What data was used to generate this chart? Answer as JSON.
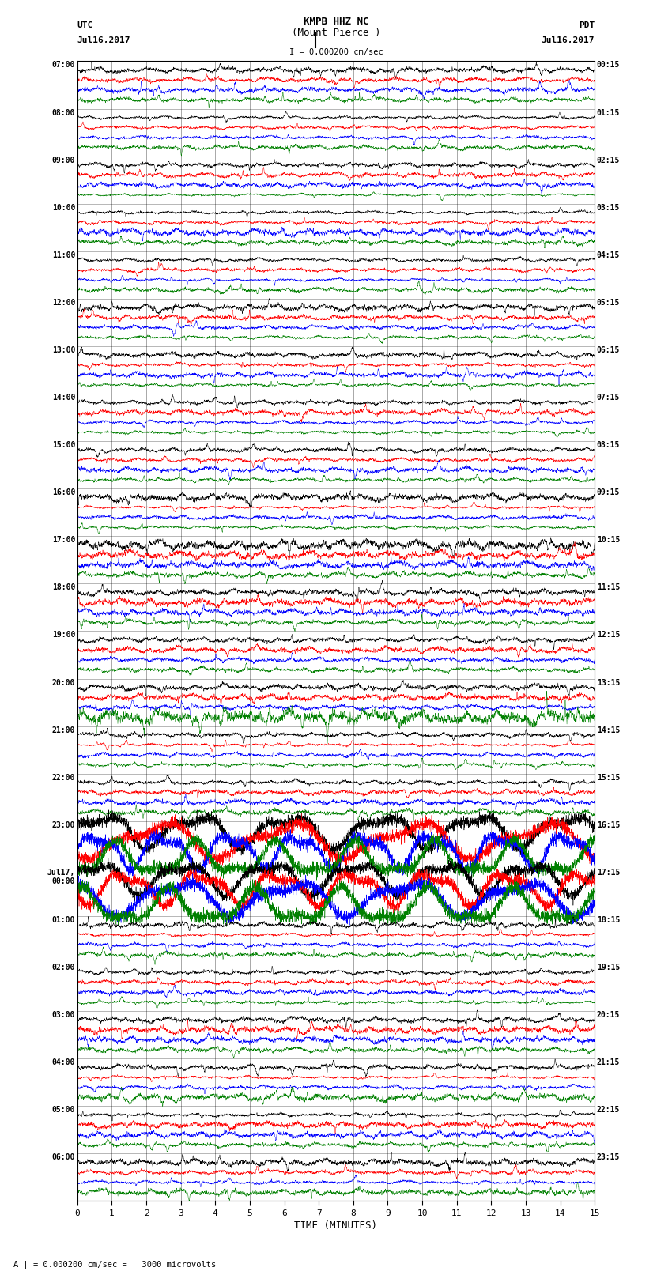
{
  "title_line1": "KMPB HHZ NC",
  "title_line2": "(Mount Pierce )",
  "scale_label": "I = 0.000200 cm/sec",
  "left_date": "Jul16,2017",
  "right_date": "Jul16,2017",
  "left_tz": "UTC",
  "right_tz": "PDT",
  "left_times": [
    "07:00",
    "08:00",
    "09:00",
    "10:00",
    "11:00",
    "12:00",
    "13:00",
    "14:00",
    "15:00",
    "16:00",
    "17:00",
    "18:00",
    "19:00",
    "20:00",
    "21:00",
    "22:00",
    "23:00",
    "Jul17,\n00:00",
    "01:00",
    "02:00",
    "03:00",
    "04:00",
    "05:00",
    "06:00"
  ],
  "right_times": [
    "00:15",
    "01:15",
    "02:15",
    "03:15",
    "04:15",
    "05:15",
    "06:15",
    "07:15",
    "08:15",
    "09:15",
    "10:15",
    "11:15",
    "12:15",
    "13:15",
    "14:15",
    "15:15",
    "16:15",
    "17:15",
    "18:15",
    "19:15",
    "20:15",
    "21:15",
    "22:15",
    "23:15"
  ],
  "xlabel": "TIME (MINUTES)",
  "bottom_label": "A | = 0.000200 cm/sec =   3000 microvolts",
  "trace_colors": [
    "black",
    "red",
    "blue",
    "green"
  ],
  "n_rows": 24,
  "traces_per_row": 4,
  "bg_color": "white",
  "plot_bg": "white",
  "x_ticks": [
    0,
    1,
    2,
    3,
    4,
    5,
    6,
    7,
    8,
    9,
    10,
    11,
    12,
    13,
    14,
    15
  ],
  "x_lim": [
    0,
    15
  ],
  "n_points": 4000,
  "trace_amp": 0.007,
  "harmonic_rows": [
    16,
    17
  ],
  "harmonic_amp_mult": 3.5,
  "large_green_rows": [
    13
  ],
  "large_green_mult": 4.0
}
